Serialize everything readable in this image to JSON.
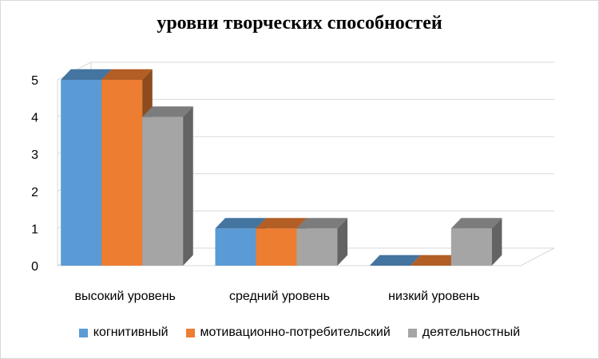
{
  "chart_data": {
    "type": "bar",
    "title": "уровни творческих способностей",
    "categories": [
      "высокий уровень",
      "средний уровень",
      "низкий уровень"
    ],
    "series": [
      {
        "name": "когнитивный",
        "values": [
          5,
          1,
          0
        ],
        "color": "#5b9bd5"
      },
      {
        "name": "мотивационно-потребительский",
        "values": [
          5,
          1,
          0
        ],
        "color": "#ed7d31"
      },
      {
        "name": "деятельностный",
        "values": [
          4,
          1,
          1
        ],
        "color": "#a5a5a5"
      }
    ],
    "yticks": [
      "0",
      "1",
      "2",
      "3",
      "4",
      "5"
    ],
    "ylim": [
      0,
      5
    ],
    "grid": true,
    "legend": "bottom",
    "style": "3d-clustered-column"
  }
}
